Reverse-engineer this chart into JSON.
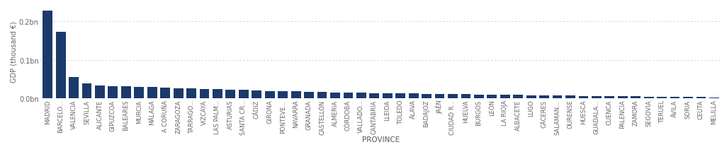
{
  "provinces": [
    "MADRID",
    "BARCELO...",
    "VALENCIA",
    "SEVILLA",
    "ALICANTE",
    "GIPUZCOA",
    "BALEARES",
    "MURCIA",
    "MÁLAGA",
    "A CORUÑA",
    "ZARAGOZA",
    "TARRAGO...",
    "VIZCAYA",
    "LAS PALM...",
    "ASTURIAS",
    "SANTA CR...",
    "CÁDIZ",
    "GIRONA",
    "PONTEVE...",
    "NAVARRA",
    "GRANADA",
    "CASTELLÓN",
    "ALMERIA",
    "CÓRDOBA",
    "VALLADO...",
    "CANTABRIA",
    "LLEIDA",
    "TOLEDO",
    "ÁLAVA",
    "BADAJOZ",
    "JAÉN",
    "CIUDAD R...",
    "HUELVA",
    "BURGOS",
    "LEÓN",
    "LA RIOJA",
    "ALBACETE",
    "LUGO",
    "CÁCERES",
    "SALAMAN...",
    "OURENSE",
    "HUESCA",
    "GUADALA...",
    "CUENCA",
    "PALENCIA",
    "ZAMORA",
    "SEGOVIA",
    "TERUEL",
    "ÁVILA",
    "SORIA",
    "CEUTA",
    "MELILLA"
  ],
  "values": [
    228000,
    173000,
    55000,
    38000,
    34000,
    32000,
    31000,
    30000,
    29000,
    27000,
    26000,
    25500,
    25000,
    24000,
    23000,
    21500,
    20500,
    19500,
    19000,
    18500,
    17000,
    16000,
    15500,
    15000,
    14500,
    13800,
    13200,
    12800,
    12400,
    12000,
    11500,
    11000,
    10500,
    10200,
    9800,
    9300,
    8800,
    8200,
    7800,
    7300,
    6800,
    6400,
    6000,
    5600,
    5200,
    4900,
    4600,
    4200,
    3900,
    3500,
    3100,
    2700
  ],
  "bar_color": "#1b3a6b",
  "background_color": "#ffffff",
  "ylabel": "GDP (thousand €)",
  "xlabel": "PROVINCE",
  "ytick_labels": [
    "0.0bn",
    "0.1bn",
    "0.2bn"
  ],
  "ytick_values": [
    0,
    100000,
    200000
  ],
  "grid_color": "#cccccc",
  "axis_label_fontsize": 7,
  "tick_fontsize": 6,
  "bar_width": 0.75
}
